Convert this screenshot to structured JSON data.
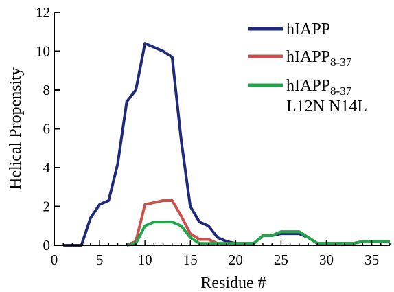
{
  "chart_data": {
    "type": "line",
    "xlabel": "Residue #",
    "ylabel": "Helical Propensity",
    "xlim": [
      0,
      37
    ],
    "ylim": [
      0,
      12
    ],
    "xticks": [
      0,
      5,
      10,
      15,
      20,
      25,
      30,
      35
    ],
    "yticks": [
      0,
      2,
      4,
      6,
      8,
      10,
      12
    ],
    "grid": false,
    "legend_position": "top-right",
    "series": [
      {
        "name": "hIAPP",
        "color": "#1f2a7a",
        "x": [
          1,
          2,
          3,
          4,
          5,
          6,
          7,
          8,
          9,
          10,
          11,
          12,
          13,
          14,
          15,
          16,
          17,
          18,
          19,
          20,
          21,
          22,
          23,
          24,
          25,
          26,
          27,
          28,
          29,
          30,
          31,
          32,
          33,
          34,
          35,
          36,
          37
        ],
        "values": [
          0,
          0,
          0,
          1.4,
          2.1,
          2.3,
          4.2,
          7.4,
          8.0,
          10.4,
          10.2,
          10.0,
          9.7,
          5.4,
          2.0,
          1.2,
          1.0,
          0.4,
          0.2,
          0.1,
          0.1,
          0.1,
          0.5,
          0.5,
          0.6,
          0.6,
          0.6,
          0.4,
          0.1,
          0.1,
          0.1,
          0.1,
          0.1,
          0.2,
          0.2,
          0.2,
          0.2
        ]
      },
      {
        "name_main": "hIAPP",
        "name_sub": "8-37",
        "color": "#c9504c",
        "x": [
          8,
          9,
          10,
          11,
          12,
          13,
          14,
          15,
          16,
          17,
          18,
          19,
          20,
          21,
          22,
          23,
          24,
          25,
          26,
          27,
          28,
          29,
          30,
          31,
          32,
          33,
          34,
          35,
          36,
          37
        ],
        "values": [
          0,
          0.2,
          2.1,
          2.2,
          2.3,
          2.3,
          1.5,
          0.6,
          0.3,
          0.3,
          0.1,
          0.1,
          0.1,
          0.1,
          0.1,
          0.5,
          0.5,
          0.7,
          0.7,
          0.7,
          0.4,
          0.1,
          0.1,
          0.1,
          0.1,
          0.1,
          0.2,
          0.2,
          0.2,
          0.2
        ]
      },
      {
        "name_main": "hIAPP",
        "name_sub": "8-37",
        "name_line2": "L12N N14L",
        "color": "#1fa64a",
        "x": [
          8,
          9,
          10,
          11,
          12,
          13,
          14,
          15,
          16,
          17,
          18,
          19,
          20,
          21,
          22,
          23,
          24,
          25,
          26,
          27,
          28,
          29,
          30,
          31,
          32,
          33,
          34,
          35,
          36,
          37
        ],
        "values": [
          0,
          0.1,
          1.0,
          1.2,
          1.2,
          1.2,
          1.0,
          0.4,
          0.1,
          0.1,
          0.1,
          0.1,
          0.1,
          0.1,
          0.1,
          0.5,
          0.5,
          0.7,
          0.7,
          0.7,
          0.4,
          0.1,
          0.1,
          0.1,
          0.1,
          0.1,
          0.2,
          0.2,
          0.2,
          0.2
        ]
      }
    ]
  }
}
